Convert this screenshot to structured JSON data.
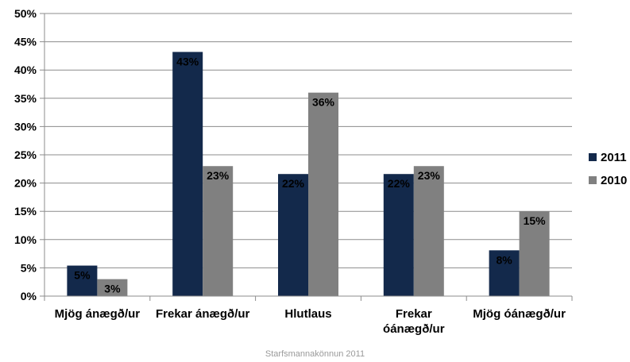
{
  "footer": "Starfsmannakönnun 2011",
  "chart_data": {
    "type": "bar",
    "categories": [
      [
        "Mjög ánægð/ur"
      ],
      [
        "Frekar ánægð/ur"
      ],
      [
        "Hlutlaus"
      ],
      [
        "Frekar",
        "óánægð/ur"
      ],
      [
        "Mjög óánægð/ur"
      ]
    ],
    "series": [
      {
        "name": "2011",
        "color": "#13294b",
        "values": [
          5.4,
          43.2,
          21.6,
          21.6,
          8.1
        ],
        "labels": [
          "5%",
          "43%",
          "22%",
          "22%",
          "8%"
        ]
      },
      {
        "name": "2010",
        "color": "#808080",
        "values": [
          3,
          23,
          36,
          23,
          15
        ],
        "labels": [
          "3%",
          "23%",
          "36%",
          "23%",
          "15%"
        ]
      }
    ],
    "ylim": [
      0,
      50
    ],
    "yticks": [
      0,
      5,
      10,
      15,
      20,
      25,
      30,
      35,
      40,
      45,
      50
    ],
    "ytick_labels": [
      "0%",
      "5%",
      "10%",
      "15%",
      "20%",
      "25%",
      "30%",
      "35%",
      "40%",
      "45%",
      "50%"
    ],
    "grid": true,
    "legend": "right"
  }
}
